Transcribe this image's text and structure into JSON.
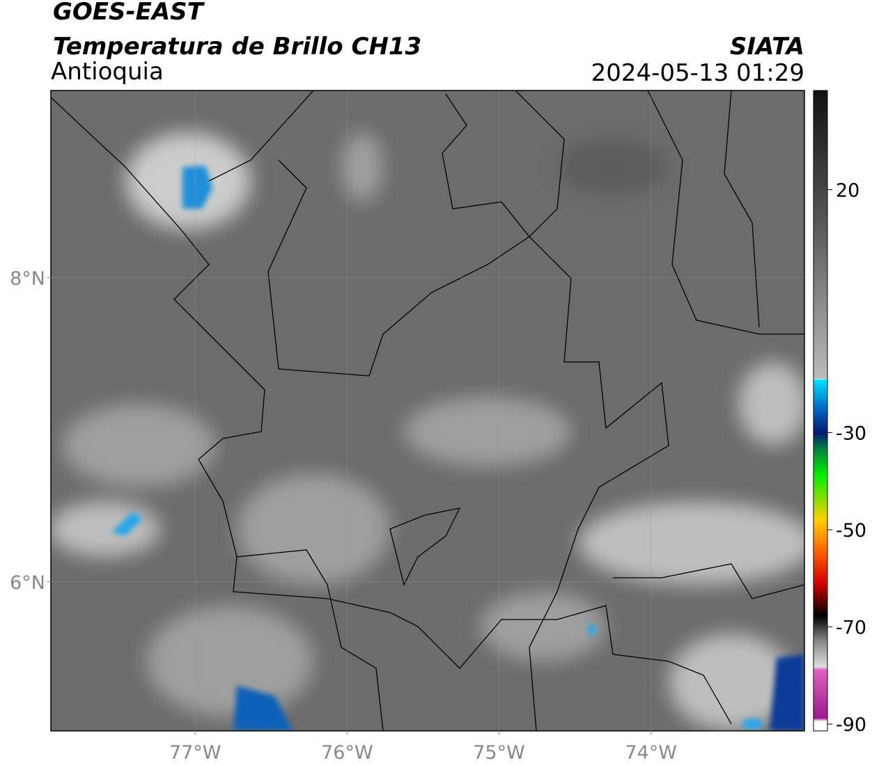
{
  "header": {
    "title": "GOES-EAST",
    "subtitle": "Temperatura de Brillo CH13",
    "region": "Antioquia",
    "source": "SIATA",
    "datetime": "2024-05-13 01:29"
  },
  "map": {
    "xlim": [
      -77.95,
      -72.99
    ],
    "ylim": [
      5.02,
      9.23
    ],
    "xticks": [
      {
        "value": -77,
        "label": "77°W"
      },
      {
        "value": -76,
        "label": "76°W"
      },
      {
        "value": -75,
        "label": "75°W"
      },
      {
        "value": -74,
        "label": "74°W"
      }
    ],
    "yticks": [
      {
        "value": 8,
        "label": "8°N"
      },
      {
        "value": 6,
        "label": "6°N"
      }
    ],
    "grid": true
  },
  "colorbar": {
    "lim": [
      -91.4,
      40.4
    ],
    "ticks": [
      20,
      -30,
      -50,
      -70,
      -90
    ]
  }
}
